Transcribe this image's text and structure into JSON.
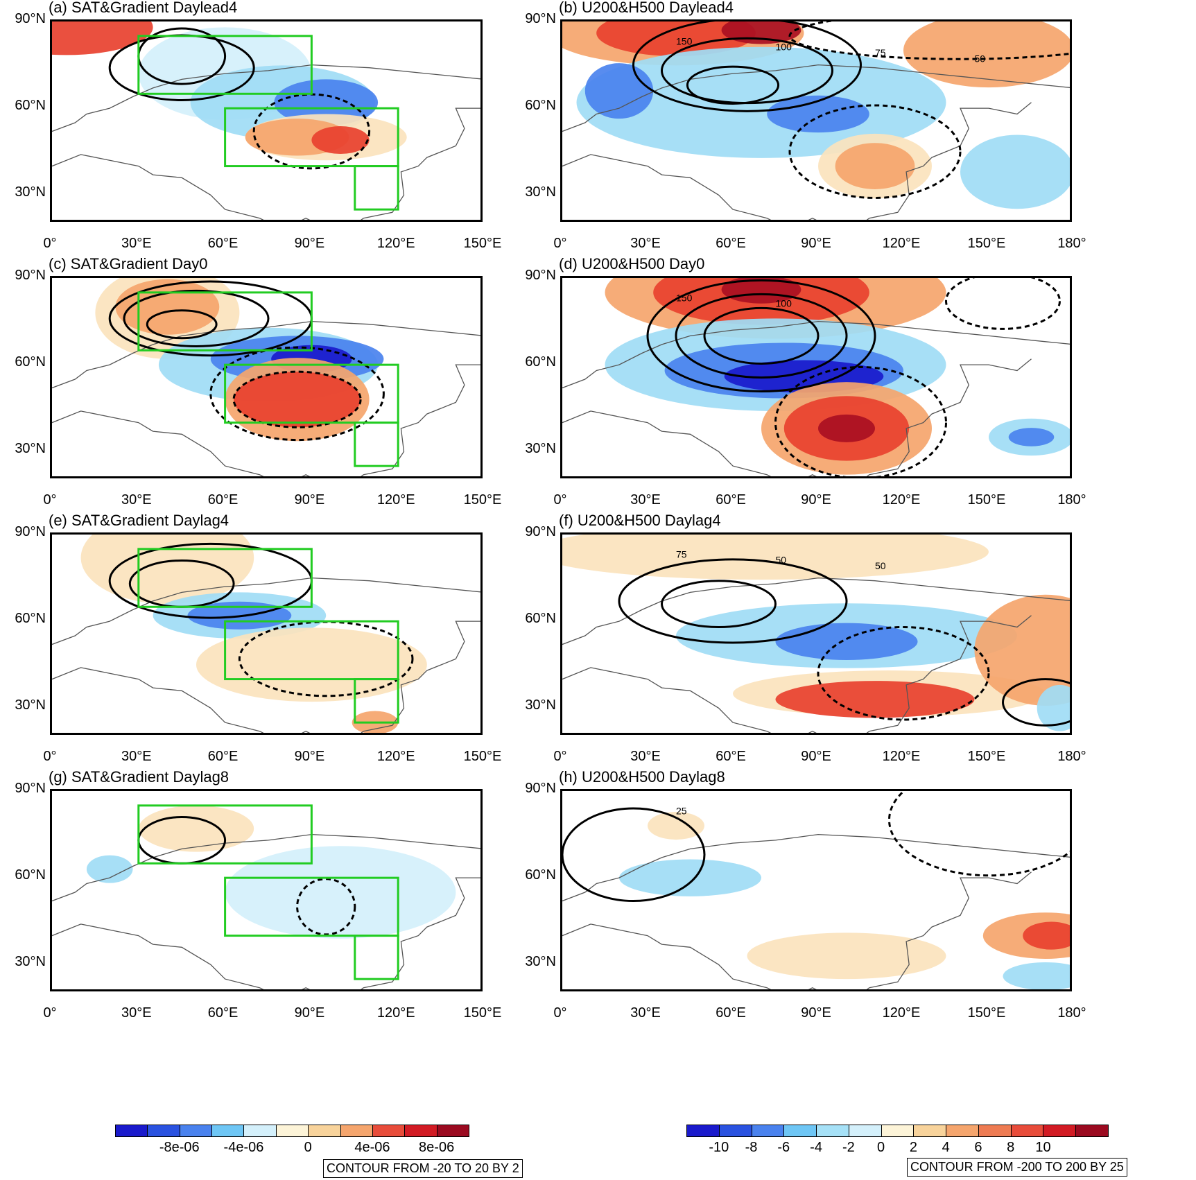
{
  "figure": {
    "panels": [
      {
        "id": "a",
        "title": "(a) SAT&Gradient Daylead4",
        "kind": "sat",
        "lon_ticks": [
          "0°",
          "30°E",
          "60°E",
          "90°E",
          "120°E",
          "150°E"
        ],
        "lat_ticks": [
          "90°N",
          "60°N",
          "30°N"
        ]
      },
      {
        "id": "b",
        "title": "(b) U200&H500 Daylead4",
        "kind": "u200",
        "lon_ticks": [
          "0°",
          "30°E",
          "60°E",
          "90°E",
          "120°E",
          "150°E",
          "180°"
        ],
        "lat_ticks": [
          "90°N",
          "60°N",
          "30°N"
        ],
        "contour_labels": [
          "150",
          "100",
          "75",
          "50"
        ]
      },
      {
        "id": "c",
        "title": "(c) SAT&Gradient Day0",
        "kind": "sat",
        "lon_ticks": [
          "0°",
          "30°E",
          "60°E",
          "90°E",
          "120°E",
          "150°E"
        ],
        "lat_ticks": [
          "90°N",
          "60°N",
          "30°N"
        ]
      },
      {
        "id": "d",
        "title": "(d) U200&H500 Day0",
        "kind": "u200",
        "lon_ticks": [
          "0°",
          "30°E",
          "60°E",
          "90°E",
          "120°E",
          "150°E",
          "180°"
        ],
        "lat_ticks": [
          "90°N",
          "60°N",
          "30°N"
        ],
        "contour_labels": [
          "150",
          "100"
        ]
      },
      {
        "id": "e",
        "title": "(e) SAT&Gradient Daylag4",
        "kind": "sat",
        "lon_ticks": [
          "0°",
          "30°E",
          "60°E",
          "90°E",
          "120°E",
          "150°E"
        ],
        "lat_ticks": [
          "90°N",
          "60°N",
          "30°N"
        ]
      },
      {
        "id": "f",
        "title": "(f) U200&H500 Daylag4",
        "kind": "u200",
        "lon_ticks": [
          "0°",
          "30°E",
          "60°E",
          "90°E",
          "120°E",
          "150°E",
          "180°"
        ],
        "lat_ticks": [
          "90°N",
          "60°N",
          "30°N"
        ],
        "contour_labels": [
          "75",
          "50",
          "50"
        ]
      },
      {
        "id": "g",
        "title": "(g) SAT&Gradient Daylag8",
        "kind": "sat",
        "lon_ticks": [
          "0°",
          "30°E",
          "60°E",
          "90°E",
          "120°E",
          "150°E"
        ],
        "lat_ticks": [
          "90°N",
          "60°N",
          "30°N"
        ]
      },
      {
        "id": "h",
        "title": "(h) U200&H500 Daylag8",
        "kind": "u200",
        "lon_ticks": [
          "0°",
          "30°E",
          "60°E",
          "90°E",
          "120°E",
          "150°E",
          "180°"
        ],
        "lat_ticks": [
          "90°N",
          "60°N",
          "30°N"
        ],
        "contour_labels": [
          "25"
        ]
      }
    ],
    "colorbar_left": {
      "colors": [
        "#1a1acc",
        "#2a52e0",
        "#4a82ee",
        "#6ec6f5",
        "#d4f0fb",
        "#fdf4d8",
        "#f8d39b",
        "#f5a56d",
        "#e84c3a",
        "#d21b24",
        "#9b0a20"
      ],
      "labels": [
        "-8e-06",
        "-4e-06",
        "0",
        "4e-06",
        "8e-06"
      ],
      "contour_note": "CONTOUR FROM -20 TO 20 BY 2"
    },
    "colorbar_right": {
      "colors": [
        "#1a1acc",
        "#2a52e0",
        "#4a82ee",
        "#6ec6f5",
        "#a6e1f7",
        "#d4f0fb",
        "#fdf4d8",
        "#f8d39b",
        "#f5a56d",
        "#ee7b52",
        "#e84c3a",
        "#d21b24",
        "#9b0a20"
      ],
      "labels": [
        "-10",
        "-8",
        "-6",
        "-4",
        "-2",
        "0",
        "2",
        "4",
        "6",
        "8",
        "10"
      ],
      "contour_note": "CONTOUR FROM -200 TO 200 BY 25"
    },
    "shade_colors": {
      "dark_blue": "#1a1acc",
      "mid_blue": "#4a82ee",
      "light_blue": "#9fdcf5",
      "pale_blue": "#d4f0fb",
      "pale_orange": "#fbe3bd",
      "orange": "#f5a56d",
      "red": "#e8412f",
      "dark_red": "#a90f22"
    },
    "box_color": "#22cc22"
  }
}
